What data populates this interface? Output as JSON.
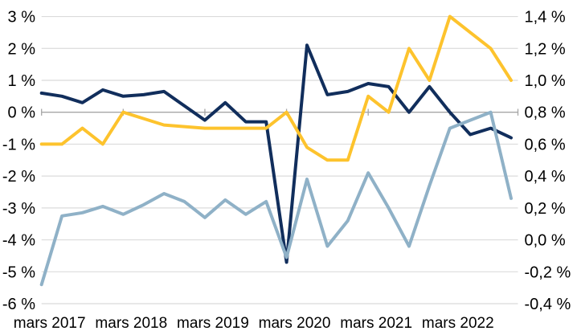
{
  "chart_data": {
    "type": "line",
    "title": "",
    "legend": "none",
    "grid": true,
    "background": "#FFFFFF",
    "grid_color": "#DBDBDB",
    "axis_line_color": "#A6A6A6",
    "text_color": "#000000",
    "x_tick_labels": [
      "mars 2017",
      "mars 2018",
      "mars 2019",
      "mars 2020",
      "mars 2021",
      "mars 2022"
    ],
    "points_per_year": 4,
    "x_note": "quarterly points from mars 2017 to dec 2022, first point on first tick",
    "left_axis": {
      "tick_labels": [
        "3 %",
        "2 %",
        "1 %",
        "0 %",
        "-1 %",
        "-2 %",
        "-3 %",
        "-4 %",
        "-5 %",
        "-6 %"
      ],
      "max": 3,
      "min": -6
    },
    "right_axis": {
      "tick_labels": [
        "1,4 %",
        "1,2 %",
        "1,0 %",
        "0,8 %",
        "0,6 %",
        "0,4 %",
        "0,2 %",
        "0,0 %",
        "-0,2 %",
        "-0,4 %"
      ],
      "max": 1.4,
      "min": -0.4
    },
    "series": [
      {
        "name": "dark-blue-line",
        "color": "#112E5C",
        "axis": "left",
        "values": [
          0.6,
          0.5,
          0.3,
          0.7,
          0.5,
          0.55,
          0.65,
          0.2,
          -0.25,
          0.3,
          -0.3,
          -0.3,
          -4.7,
          2.1,
          0.55,
          0.65,
          0.9,
          0.8,
          0.0,
          0.8,
          0.0,
          -0.7,
          -0.5,
          -0.8
        ]
      },
      {
        "name": "yellow-line",
        "color": "#FDC32D",
        "axis": "left",
        "values": [
          -1.0,
          -1.0,
          -0.5,
          -1.0,
          0.0,
          -0.2,
          -0.4,
          -0.45,
          -0.5,
          -0.5,
          -0.5,
          -0.5,
          0.0,
          -1.1,
          -1.5,
          -1.5,
          0.5,
          0.0,
          2.0,
          1.0,
          3.0,
          2.5,
          2.0,
          1.0
        ]
      },
      {
        "name": "light-blue-line",
        "color": "#8FB1C7",
        "axis": "left",
        "values": [
          -5.4,
          -3.25,
          -3.15,
          -2.95,
          -3.2,
          -2.9,
          -2.55,
          -2.8,
          -3.3,
          -2.75,
          -3.2,
          -2.8,
          -4.55,
          -2.1,
          -4.2,
          -3.4,
          -1.9,
          -3.0,
          -4.2,
          -2.3,
          -0.5,
          -0.25,
          0.0,
          -2.7
        ]
      }
    ]
  }
}
